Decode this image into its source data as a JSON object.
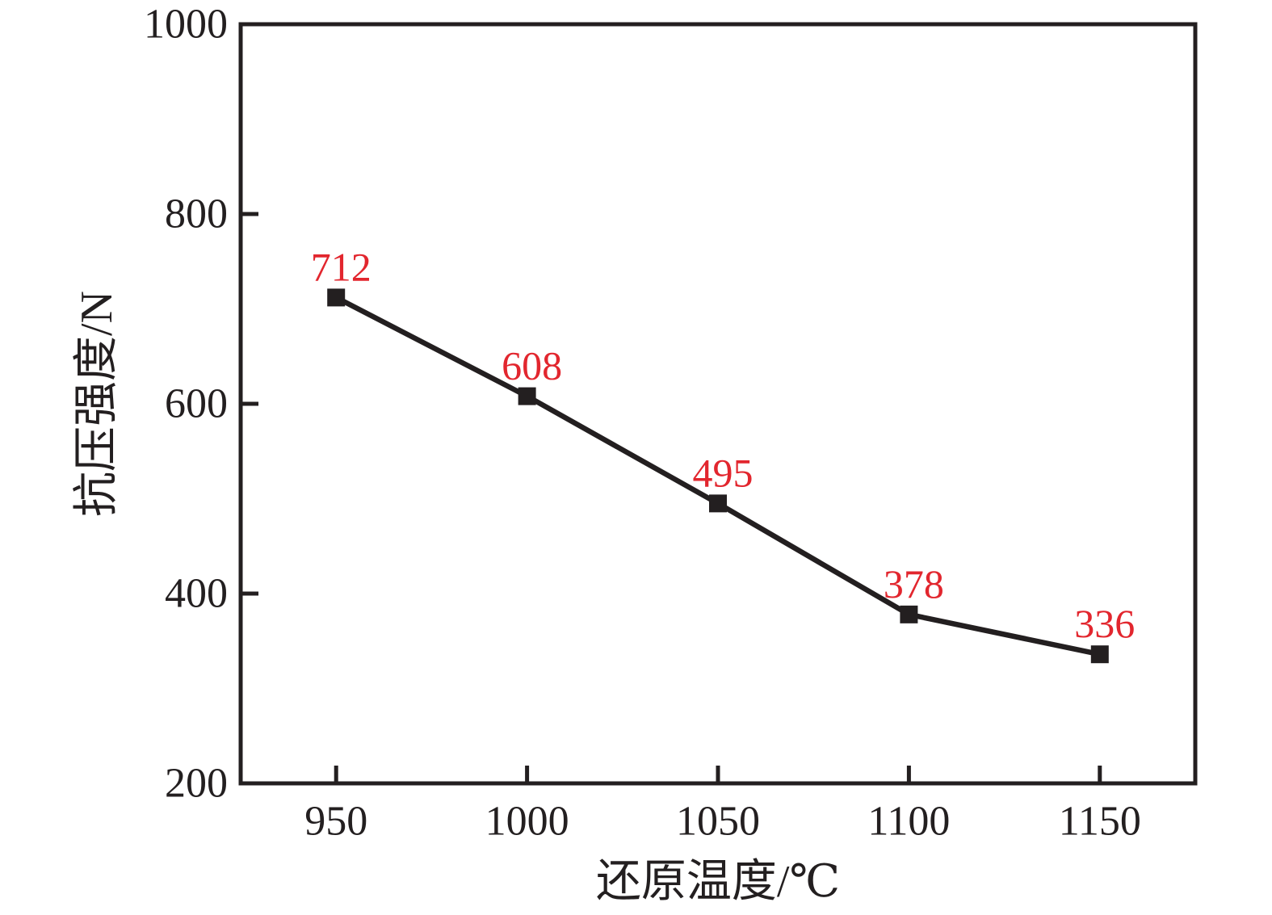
{
  "chart_data": {
    "type": "line",
    "title": "",
    "xlabel": "还原温度/℃",
    "ylabel": "抗压强度/N",
    "x": [
      950,
      1000,
      1050,
      1100,
      1150
    ],
    "series": [
      {
        "name": "抗压强度",
        "values": [
          712,
          608,
          495,
          378,
          336
        ]
      }
    ],
    "point_labels": [
      "712",
      "608",
      "495",
      "378",
      "336"
    ],
    "x_ticks": [
      "950",
      "1000",
      "1050",
      "1100",
      "1150"
    ],
    "y_ticks": [
      "200",
      "400",
      "600",
      "800",
      "1000"
    ],
    "xlim": [
      925,
      1175
    ],
    "ylim": [
      200,
      1000
    ],
    "grid": false,
    "legend": false,
    "marker": "filled-square",
    "ink_color": "#231f20",
    "point_label_color": "#e2262e",
    "background_color": "#ffffff"
  }
}
